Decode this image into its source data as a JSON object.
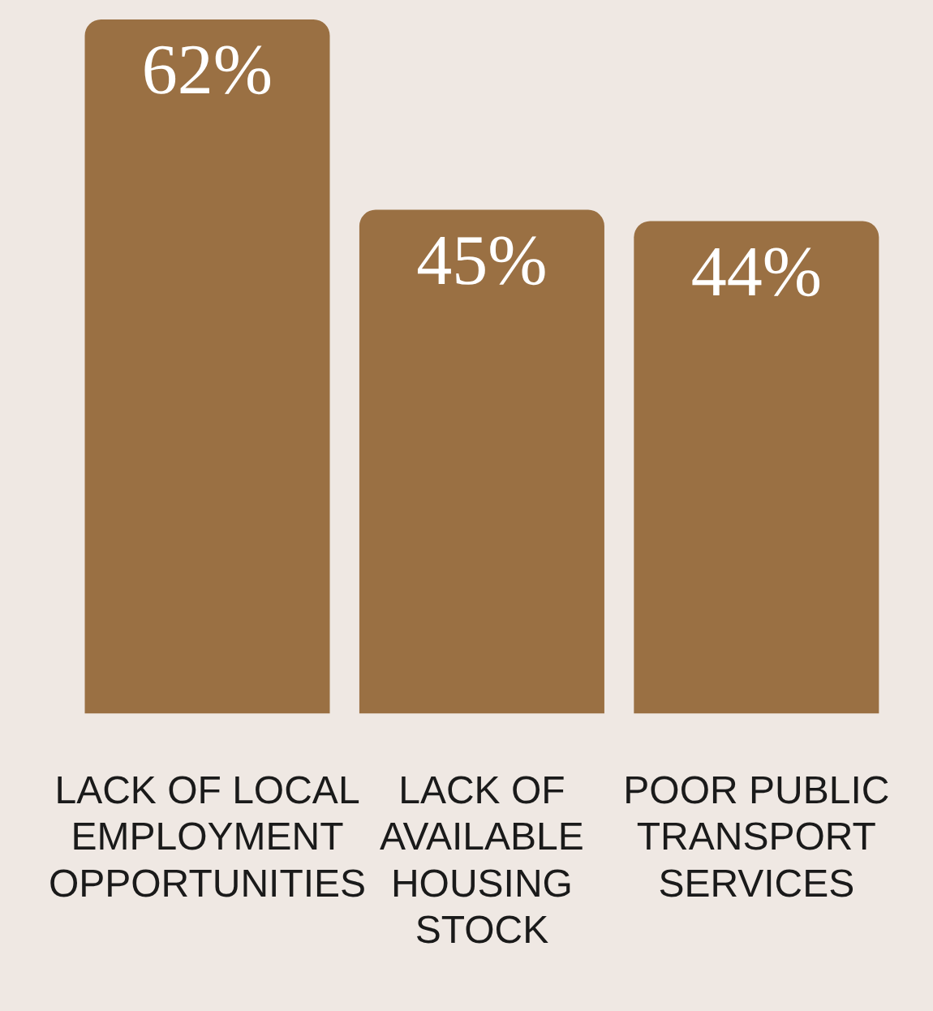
{
  "chart_data": {
    "type": "bar",
    "categories": [
      "LACK OF LOCAL EMPLOYMENT OPPORTUNITIES",
      "LACK OF AVAILABLE HOUSING STOCK",
      "POOR PUBLIC TRANSPORT SERVICES"
    ],
    "values": [
      62,
      45,
      44
    ],
    "color": "#9a7043",
    "value_labels": [
      "62%",
      "45%",
      "44%"
    ],
    "grid": false,
    "legend": false,
    "tick_labels": "x"
  }
}
